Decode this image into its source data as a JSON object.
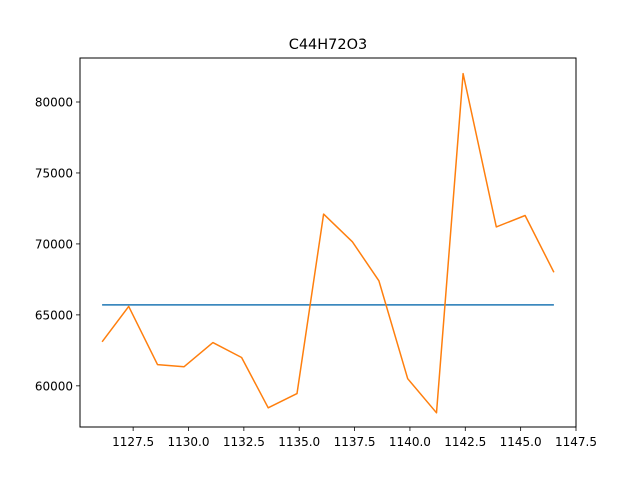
{
  "chart_data": {
    "type": "line",
    "title": "C44H72O3",
    "xlabel": "",
    "ylabel": "",
    "xlim": [
      1125.1,
      1147.5
    ],
    "ylim": [
      57100,
      83100
    ],
    "x_ticks": [
      1127.5,
      1130.0,
      1132.5,
      1135.0,
      1137.5,
      1140.0,
      1142.5,
      1145.0,
      1147.5
    ],
    "x_tick_labels": [
      "1127.5",
      "1130.0",
      "1132.5",
      "1135.0",
      "1137.5",
      "1140.0",
      "1142.5",
      "1145.0",
      "1147.5"
    ],
    "y_ticks": [
      60000,
      65000,
      70000,
      75000,
      80000
    ],
    "y_tick_labels": [
      "60000",
      "65000",
      "70000",
      "75000",
      "80000"
    ],
    "grid": false,
    "series": [
      {
        "color": "#1f77b4",
        "x": [
          1126.1,
          1146.5
        ],
        "y": [
          65700,
          65700
        ]
      },
      {
        "color": "#ff7f0e",
        "x": [
          1126.1,
          1127.3,
          1128.6,
          1129.8,
          1131.1,
          1132.4,
          1133.6,
          1134.9,
          1136.1,
          1137.4,
          1138.6,
          1139.9,
          1141.2,
          1142.4,
          1143.9,
          1145.2,
          1146.5
        ],
        "y": [
          63100,
          65600,
          61500,
          61350,
          63050,
          62000,
          58450,
          59450,
          72100,
          70150,
          67400,
          60500,
          58100,
          82000,
          71200,
          72000,
          68000
        ]
      }
    ]
  }
}
